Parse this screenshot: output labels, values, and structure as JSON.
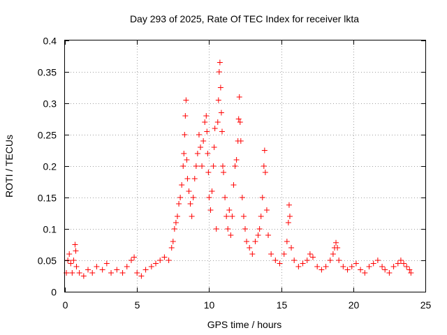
{
  "chart_data": {
    "type": "scatter",
    "title": "Day 293 of 2025, Rate Of TEC Index for receiver lkta",
    "xlabel": "GPS time / hours",
    "ylabel": "ROTI / TECUs",
    "xlim": [
      0,
      25
    ],
    "ylim": [
      0,
      0.4
    ],
    "x_ticks": [
      "0",
      "5",
      "10",
      "15",
      "20",
      "25"
    ],
    "y_ticks": [
      "0",
      "0.05",
      "0.1",
      "0.15",
      "0.2",
      "0.25",
      "0.3",
      "0.35",
      "0.4"
    ],
    "grid": true,
    "marker": "plus",
    "color": "#ff0000",
    "series": [
      {
        "points": [
          [
            0.1,
            0.03
          ],
          [
            0.2,
            0.05
          ],
          [
            0.3,
            0.06
          ],
          [
            0.4,
            0.045
          ],
          [
            0.5,
            0.03
          ],
          [
            0.6,
            0.05
          ],
          [
            0.7,
            0.075
          ],
          [
            0.75,
            0.065
          ],
          [
            0.8,
            0.04
          ],
          [
            1.0,
            0.03
          ],
          [
            1.3,
            0.025
          ],
          [
            1.6,
            0.035
          ],
          [
            1.9,
            0.03
          ],
          [
            2.2,
            0.04
          ],
          [
            2.6,
            0.035
          ],
          [
            2.9,
            0.045
          ],
          [
            3.2,
            0.03
          ],
          [
            3.6,
            0.035
          ],
          [
            4.0,
            0.03
          ],
          [
            4.3,
            0.04
          ],
          [
            4.6,
            0.05
          ],
          [
            4.8,
            0.055
          ],
          [
            5.0,
            0.03
          ],
          [
            5.3,
            0.025
          ],
          [
            5.6,
            0.035
          ],
          [
            6.0,
            0.04
          ],
          [
            6.3,
            0.045
          ],
          [
            6.6,
            0.05
          ],
          [
            6.9,
            0.055
          ],
          [
            7.2,
            0.05
          ],
          [
            7.4,
            0.07
          ],
          [
            7.5,
            0.08
          ],
          [
            7.6,
            0.1
          ],
          [
            7.7,
            0.11
          ],
          [
            7.8,
            0.12
          ],
          [
            7.9,
            0.14
          ],
          [
            8.0,
            0.15
          ],
          [
            8.1,
            0.17
          ],
          [
            8.2,
            0.2
          ],
          [
            8.25,
            0.22
          ],
          [
            8.3,
            0.25
          ],
          [
            8.35,
            0.28
          ],
          [
            8.4,
            0.305
          ],
          [
            8.45,
            0.21
          ],
          [
            8.5,
            0.18
          ],
          [
            8.6,
            0.16
          ],
          [
            8.7,
            0.14
          ],
          [
            8.8,
            0.12
          ],
          [
            8.9,
            0.15
          ],
          [
            9.0,
            0.18
          ],
          [
            9.1,
            0.2
          ],
          [
            9.2,
            0.22
          ],
          [
            9.3,
            0.25
          ],
          [
            9.4,
            0.23
          ],
          [
            9.5,
            0.2
          ],
          [
            9.6,
            0.24
          ],
          [
            9.7,
            0.27
          ],
          [
            9.8,
            0.28
          ],
          [
            9.85,
            0.255
          ],
          [
            9.9,
            0.22
          ],
          [
            9.95,
            0.19
          ],
          [
            10.0,
            0.15
          ],
          [
            10.1,
            0.13
          ],
          [
            10.2,
            0.16
          ],
          [
            10.3,
            0.2
          ],
          [
            10.35,
            0.23
          ],
          [
            10.4,
            0.26
          ],
          [
            10.5,
            0.1
          ],
          [
            10.6,
            0.27
          ],
          [
            10.65,
            0.305
          ],
          [
            10.7,
            0.35
          ],
          [
            10.75,
            0.365
          ],
          [
            10.8,
            0.325
          ],
          [
            10.85,
            0.285
          ],
          [
            10.9,
            0.255
          ],
          [
            10.95,
            0.2
          ],
          [
            11.0,
            0.19
          ],
          [
            11.1,
            0.15
          ],
          [
            11.2,
            0.12
          ],
          [
            11.3,
            0.1
          ],
          [
            11.4,
            0.13
          ],
          [
            11.5,
            0.09
          ],
          [
            11.6,
            0.12
          ],
          [
            11.7,
            0.17
          ],
          [
            11.8,
            0.2
          ],
          [
            11.9,
            0.21
          ],
          [
            12.0,
            0.24
          ],
          [
            12.05,
            0.275
          ],
          [
            12.1,
            0.31
          ],
          [
            12.15,
            0.27
          ],
          [
            12.2,
            0.24
          ],
          [
            12.3,
            0.15
          ],
          [
            12.4,
            0.12
          ],
          [
            12.5,
            0.1
          ],
          [
            12.6,
            0.08
          ],
          [
            12.8,
            0.07
          ],
          [
            13.0,
            0.06
          ],
          [
            13.2,
            0.08
          ],
          [
            13.4,
            0.09
          ],
          [
            13.5,
            0.1
          ],
          [
            13.6,
            0.12
          ],
          [
            13.7,
            0.15
          ],
          [
            13.8,
            0.2
          ],
          [
            13.85,
            0.225
          ],
          [
            13.9,
            0.19
          ],
          [
            14.0,
            0.13
          ],
          [
            14.1,
            0.09
          ],
          [
            14.3,
            0.06
          ],
          [
            14.6,
            0.05
          ],
          [
            14.9,
            0.045
          ],
          [
            15.2,
            0.06
          ],
          [
            15.4,
            0.08
          ],
          [
            15.5,
            0.11
          ],
          [
            15.55,
            0.138
          ],
          [
            15.6,
            0.12
          ],
          [
            15.7,
            0.07
          ],
          [
            15.9,
            0.05
          ],
          [
            16.2,
            0.04
          ],
          [
            16.5,
            0.045
          ],
          [
            16.8,
            0.05
          ],
          [
            17.0,
            0.06
          ],
          [
            17.2,
            0.055
          ],
          [
            17.5,
            0.04
          ],
          [
            17.8,
            0.035
          ],
          [
            18.1,
            0.04
          ],
          [
            18.4,
            0.05
          ],
          [
            18.6,
            0.06
          ],
          [
            18.7,
            0.07
          ],
          [
            18.8,
            0.078
          ],
          [
            18.9,
            0.07
          ],
          [
            19.0,
            0.05
          ],
          [
            19.3,
            0.04
          ],
          [
            19.6,
            0.035
          ],
          [
            19.9,
            0.04
          ],
          [
            20.2,
            0.045
          ],
          [
            20.5,
            0.035
          ],
          [
            20.8,
            0.03
          ],
          [
            21.1,
            0.04
          ],
          [
            21.4,
            0.045
          ],
          [
            21.7,
            0.05
          ],
          [
            22.0,
            0.04
          ],
          [
            22.2,
            0.035
          ],
          [
            22.5,
            0.03
          ],
          [
            22.8,
            0.04
          ],
          [
            23.1,
            0.045
          ],
          [
            23.3,
            0.05
          ],
          [
            23.5,
            0.045
          ],
          [
            23.7,
            0.04
          ],
          [
            23.9,
            0.035
          ],
          [
            24.0,
            0.03
          ]
        ]
      }
    ]
  }
}
